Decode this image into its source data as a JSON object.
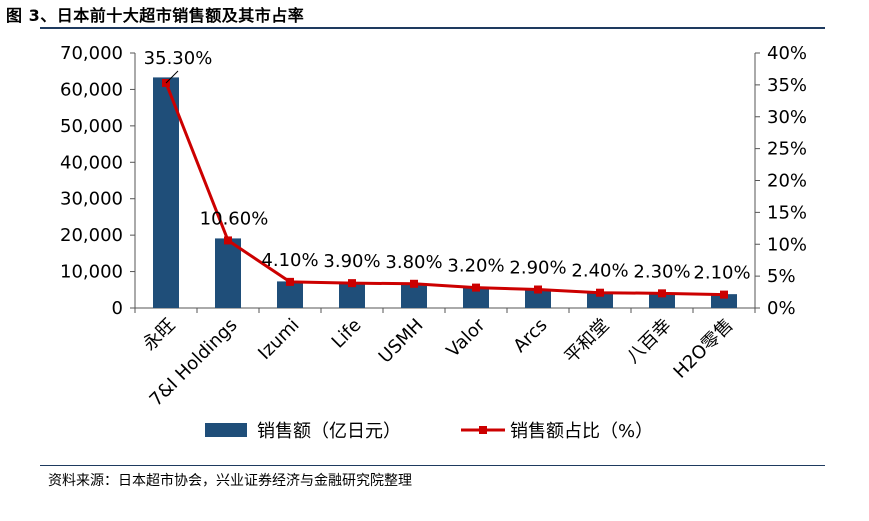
{
  "page": {
    "title": "图 3、日本前十大超市销售额及其市占率",
    "source": "资料来源：日本超市协会，兴业证券经济与金融研究院整理"
  },
  "colors": {
    "bar": "#1f4e79",
    "line": "#cc0000",
    "rule": "#1e3a5f"
  },
  "chart_data": {
    "type": "bar",
    "categories": [
      "永旺",
      "7&I Holdings",
      "Izumi",
      "Life",
      "USMH",
      "Valor",
      "Arcs",
      "平和堂",
      "八百幸",
      "H2O零售"
    ],
    "series": [
      {
        "name": "销售额（亿日元）",
        "type": "bar",
        "axis": "left",
        "values": [
          63300,
          19100,
          7300,
          7000,
          6800,
          5800,
          5200,
          4300,
          4100,
          3800
        ]
      },
      {
        "name": "销售额占比（%）",
        "type": "line",
        "axis": "right",
        "values": [
          35.3,
          10.6,
          4.1,
          3.9,
          3.8,
          3.2,
          2.9,
          2.4,
          2.3,
          2.1
        ],
        "data_labels": [
          "35.30%",
          "10.60%",
          "4.10%",
          "3.90%",
          "3.80%",
          "3.20%",
          "2.90%",
          "2.40%",
          "2.30%",
          "2.10%"
        ]
      }
    ],
    "y_left": {
      "ylim": [
        0,
        70000
      ],
      "ticks": [
        0,
        10000,
        20000,
        30000,
        40000,
        50000,
        60000,
        70000
      ],
      "tick_labels": [
        "0",
        "10,000",
        "20,000",
        "30,000",
        "40,000",
        "50,000",
        "60,000",
        "70,000"
      ]
    },
    "y_right": {
      "ylim": [
        0,
        40
      ],
      "ticks": [
        0,
        5,
        10,
        15,
        20,
        25,
        30,
        35,
        40
      ],
      "tick_labels": [
        "0%",
        "5%",
        "10%",
        "15%",
        "20%",
        "25%",
        "30%",
        "35%",
        "40%"
      ]
    },
    "grid": false,
    "legend": "bottom"
  }
}
